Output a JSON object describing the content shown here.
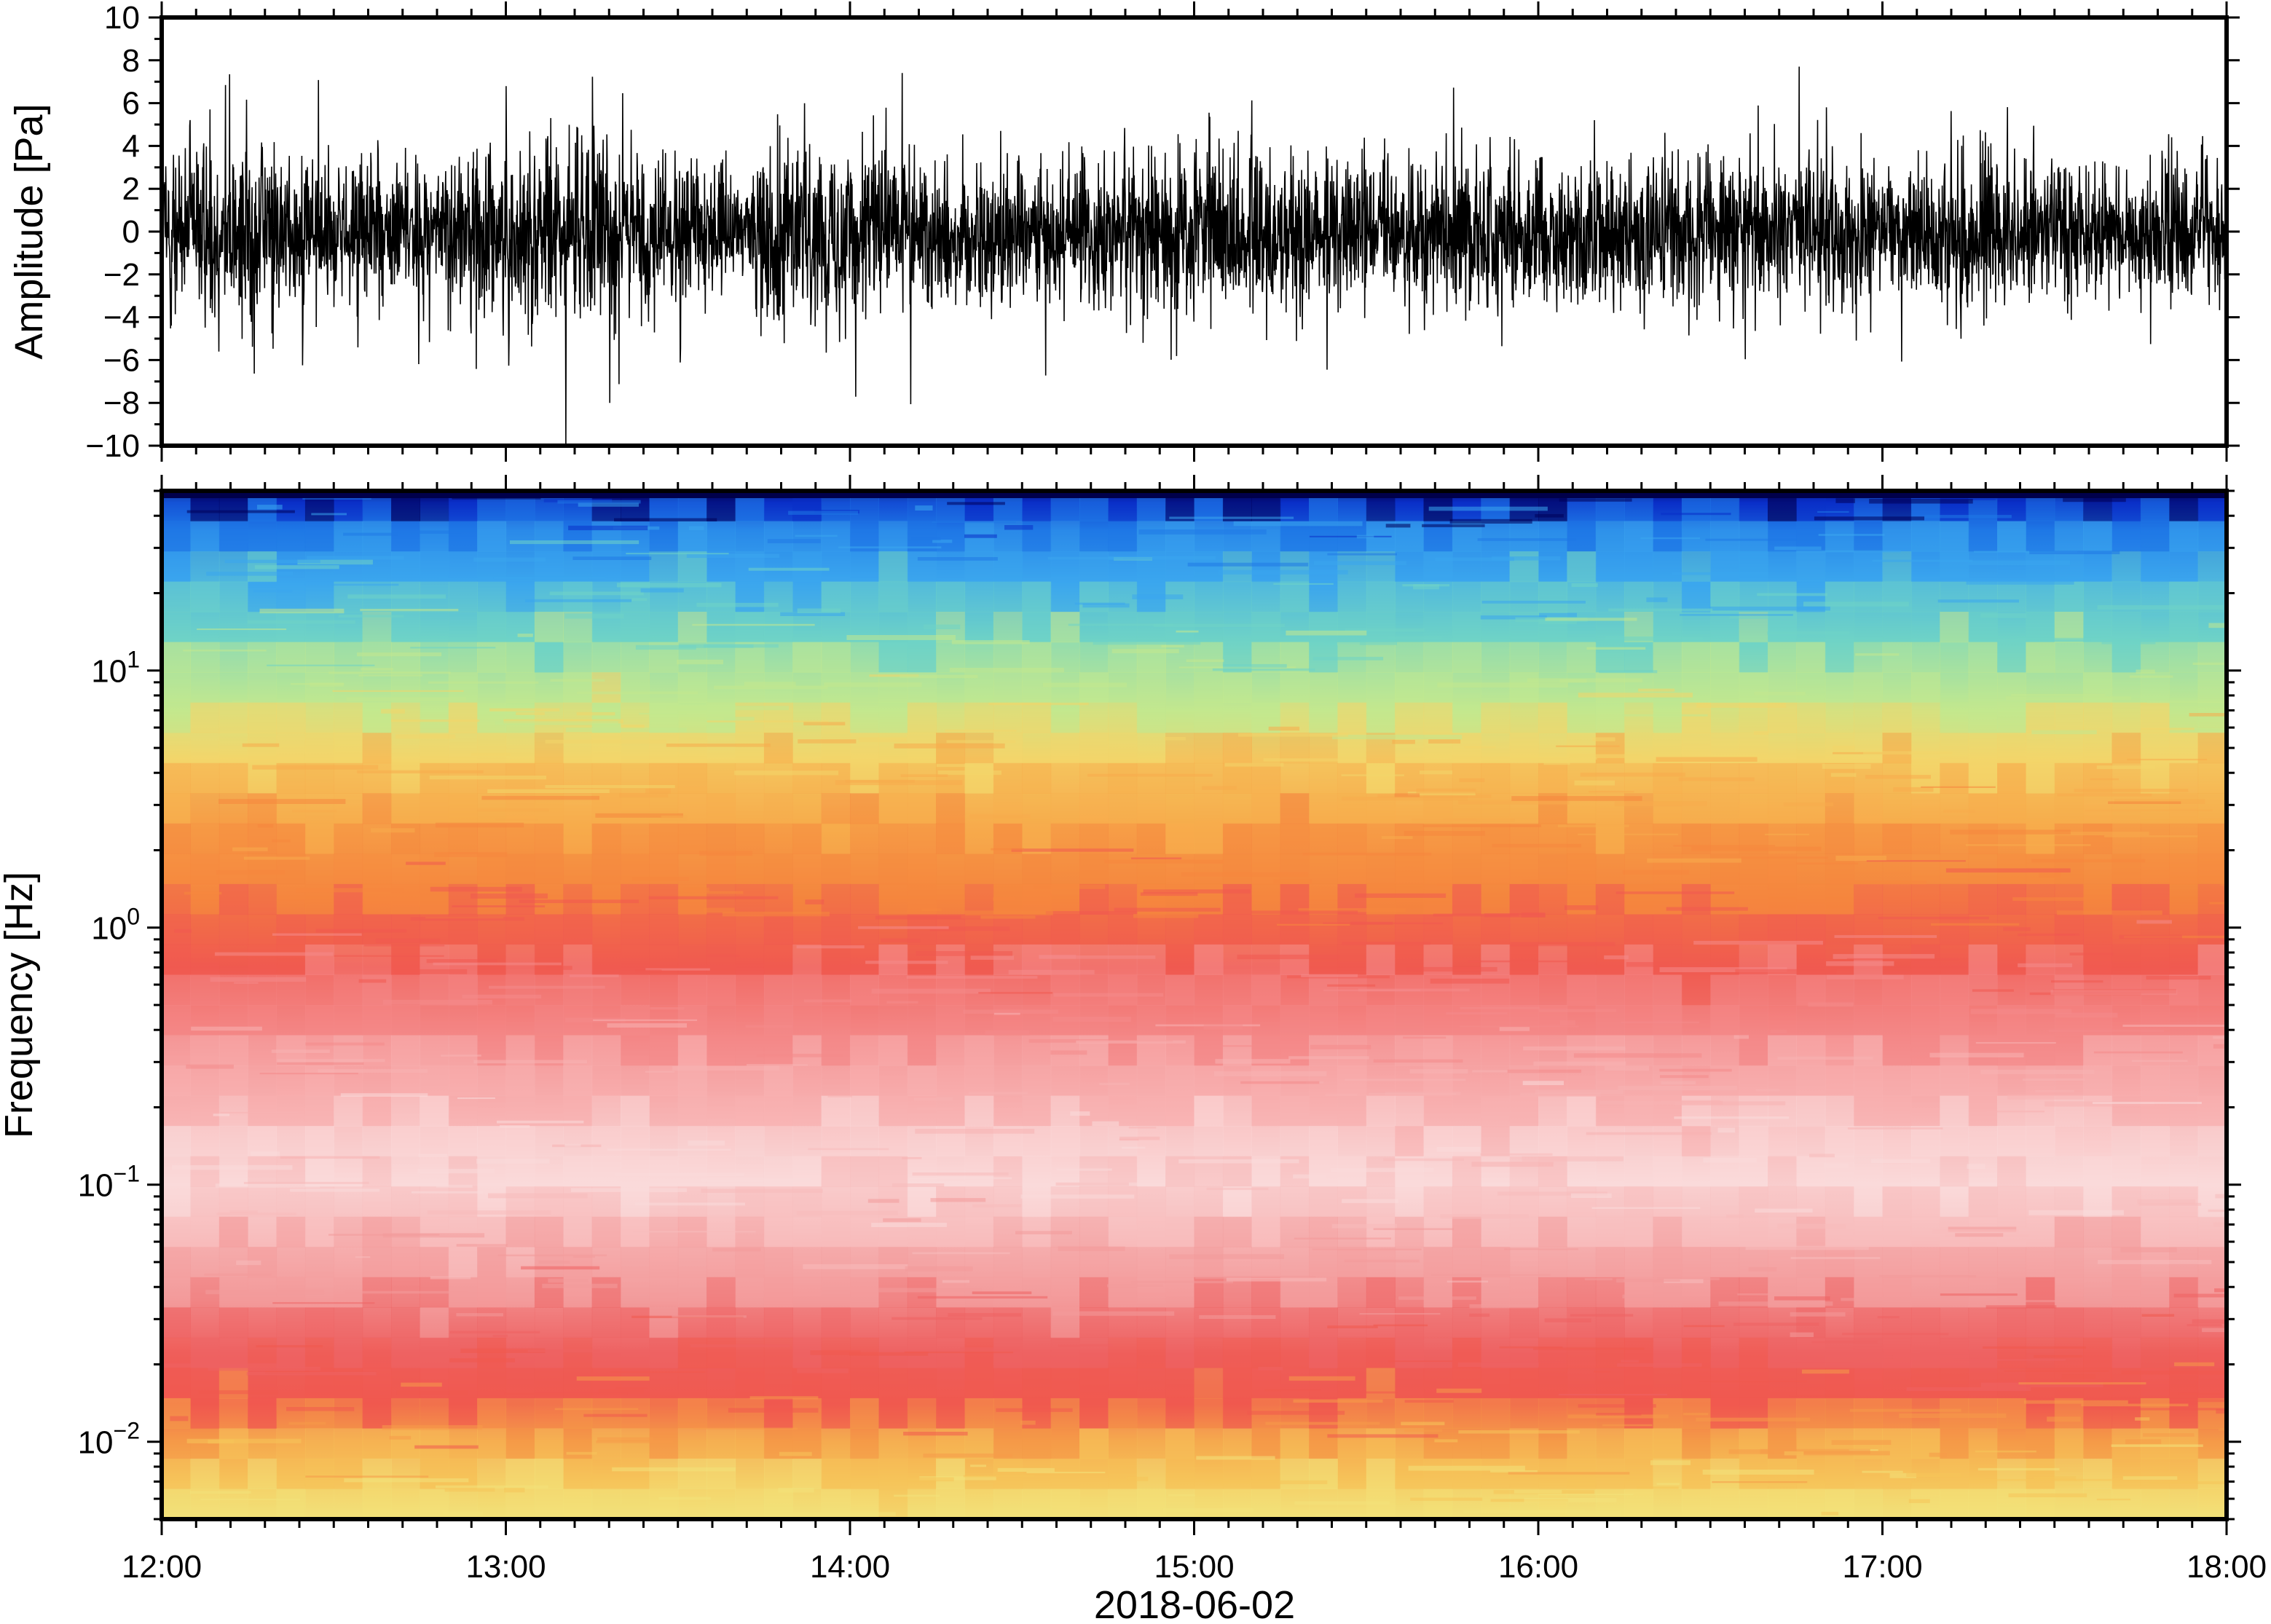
{
  "chart_data": [
    {
      "type": "line",
      "panel": "waveform",
      "title": "",
      "xlabel": "2018-06-02",
      "ylabel": "Amplitude [Pa]",
      "xlim": [
        "2018-06-02 12:00",
        "2018-06-02 18:00"
      ],
      "ylim": [
        -10,
        10
      ],
      "y_ticks": [
        10,
        8,
        6,
        4,
        2,
        0,
        -2,
        -4,
        -6,
        -8,
        -10
      ],
      "y_tick_labels": [
        "10",
        "8",
        "6",
        "4",
        "2",
        "0",
        "−2",
        "−4",
        "−6",
        "−8",
        "−10"
      ],
      "x_tick_labels": [
        "12:00",
        "13:00",
        "14:00",
        "15:00",
        "16:00",
        "17:00",
        "18:00"
      ],
      "grid": false,
      "series": [
        {
          "color": "#000000",
          "envelope_times_h": [
            12.0,
            12.25,
            12.5,
            12.75,
            13.0,
            13.25,
            13.5,
            13.7,
            13.75,
            14.0,
            14.25,
            14.5,
            14.75,
            15.0,
            15.25,
            15.5,
            15.75,
            16.0,
            16.25,
            16.5,
            16.75,
            17.0,
            17.25,
            17.5,
            17.75,
            18.0
          ],
          "typical_peak_pa": [
            6.5,
            7.5,
            6.0,
            5.5,
            7.0,
            7.5,
            6.0,
            3.5,
            6.5,
            7.0,
            6.0,
            5.5,
            6.0,
            6.5,
            6.0,
            5.5,
            6.0,
            6.0,
            5.5,
            6.0,
            6.0,
            5.0,
            6.5,
            5.5,
            5.0,
            5.0
          ],
          "max_abs_pa": 10
        }
      ]
    },
    {
      "type": "heatmap",
      "panel": "spectrogram",
      "title": "",
      "xlabel": "2018-06-02",
      "ylabel": "Frequency [Hz]",
      "xlim": [
        "2018-06-02 12:00",
        "2018-06-02 18:00"
      ],
      "ylim": [
        0.005,
        50
      ],
      "y_scale": "log",
      "y_ticks": [
        0.01,
        0.1,
        1,
        10
      ],
      "y_tick_labels": [
        {
          "base": "10",
          "exp": "−2"
        },
        {
          "base": "10",
          "exp": "−1"
        },
        {
          "base": "10",
          "exp": "0"
        },
        {
          "base": "10",
          "exp": "1"
        }
      ],
      "x_tick_labels": [
        "12:00",
        "13:00",
        "14:00",
        "15:00",
        "16:00",
        "17:00",
        "18:00"
      ],
      "colormap": {
        "name": "jet-like with white for lowest-variance mid band",
        "stops": [
          {
            "freq_hz": 50,
            "color": "#00005a"
          },
          {
            "freq_hz": 45,
            "color": "#0a2fc8"
          },
          {
            "freq_hz": 35,
            "color": "#1f78e6"
          },
          {
            "freq_hz": 22,
            "color": "#3ba6ee"
          },
          {
            "freq_hz": 13,
            "color": "#6fd3c6"
          },
          {
            "freq_hz": 7,
            "color": "#c3e88e"
          },
          {
            "freq_hz": 4.5,
            "color": "#f3d56a"
          },
          {
            "freq_hz": 2.5,
            "color": "#f7ac4c"
          },
          {
            "freq_hz": 1.3,
            "color": "#f5863e"
          },
          {
            "freq_hz": 0.7,
            "color": "#f05a50"
          },
          {
            "freq_hz": 0.35,
            "color": "#f48a8a"
          },
          {
            "freq_hz": 0.18,
            "color": "#f8b3b3"
          },
          {
            "freq_hz": 0.1,
            "color": "#fadada"
          },
          {
            "freq_hz": 0.06,
            "color": "#f8bcbc"
          },
          {
            "freq_hz": 0.035,
            "color": "#f39a9a"
          },
          {
            "freq_hz": 0.022,
            "color": "#ee6262"
          },
          {
            "freq_hz": 0.014,
            "color": "#f0594f"
          },
          {
            "freq_hz": 0.01,
            "color": "#f59a48"
          },
          {
            "freq_hz": 0.007,
            "color": "#f6c45a"
          },
          {
            "freq_hz": 0.005,
            "color": "#f2e27a"
          }
        ]
      },
      "time_columns": 72,
      "grid": false
    }
  ]
}
